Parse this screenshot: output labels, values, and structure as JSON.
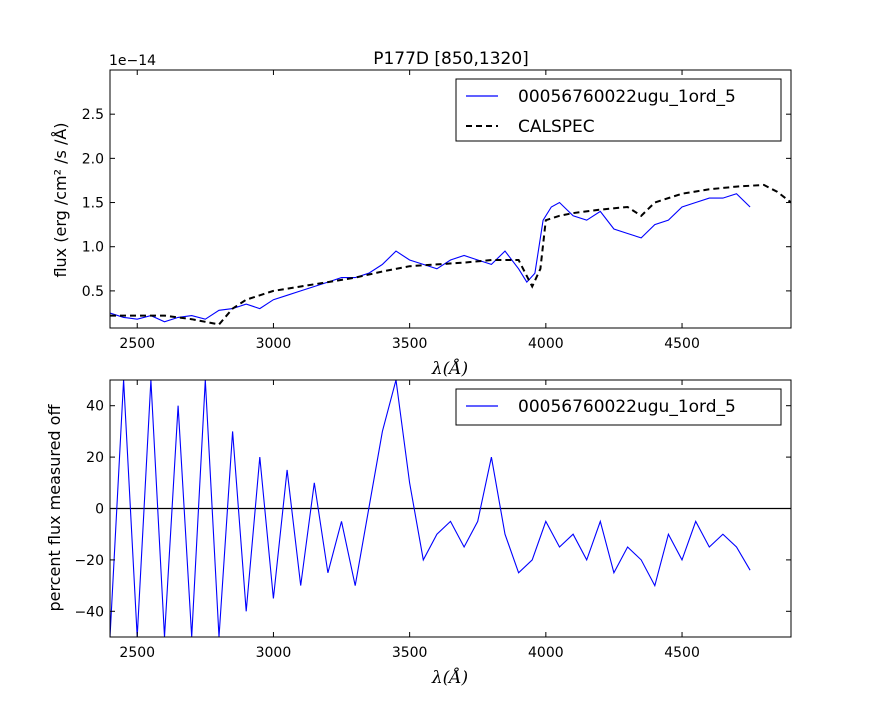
{
  "chart_data": [
    {
      "type": "line",
      "title": "P177D [850,1320]",
      "xlabel": "λ(Å)",
      "ylabel": "flux (erg /cm² /s /Å)",
      "offset_text": "1e−14",
      "xlim": [
        2400,
        4900
      ],
      "ylim": [
        0.08,
        3.0
      ],
      "x_ticks": [
        "2500",
        "3000",
        "3500",
        "4000",
        "4500"
      ],
      "y_ticks": [
        "0.5",
        "1.0",
        "1.5",
        "2.0",
        "2.5"
      ],
      "legend_position": "upper-right",
      "grid": false,
      "series": [
        {
          "name": "00056760022ugu_1ord_5",
          "color": "#0000ff",
          "style": "solid",
          "x": [
            2400,
            2450,
            2500,
            2550,
            2600,
            2650,
            2700,
            2750,
            2800,
            2850,
            2900,
            2950,
            3000,
            3050,
            3100,
            3150,
            3200,
            3250,
            3300,
            3350,
            3400,
            3450,
            3500,
            3550,
            3600,
            3650,
            3700,
            3750,
            3800,
            3850,
            3900,
            3930,
            3960,
            3990,
            4020,
            4050,
            4100,
            4150,
            4200,
            4250,
            4300,
            4350,
            4400,
            4450,
            4500,
            4550,
            4600,
            4650,
            4700,
            4750
          ],
          "y": [
            0.25,
            0.2,
            0.18,
            0.22,
            0.15,
            0.2,
            0.22,
            0.18,
            0.28,
            0.3,
            0.35,
            0.3,
            0.4,
            0.45,
            0.5,
            0.55,
            0.6,
            0.65,
            0.65,
            0.7,
            0.8,
            0.95,
            0.85,
            0.8,
            0.75,
            0.85,
            0.9,
            0.85,
            0.8,
            0.95,
            0.75,
            0.6,
            0.7,
            1.3,
            1.45,
            1.5,
            1.35,
            1.3,
            1.4,
            1.2,
            1.15,
            1.1,
            1.25,
            1.3,
            1.45,
            1.5,
            1.55,
            1.55,
            1.6,
            1.45
          ]
        },
        {
          "name": "CALSPEC",
          "color": "#000000",
          "style": "dashed",
          "x": [
            2400,
            2500,
            2600,
            2650,
            2700,
            2750,
            2800,
            2850,
            2900,
            3000,
            3100,
            3200,
            3300,
            3400,
            3500,
            3600,
            3700,
            3800,
            3850,
            3900,
            3950,
            3980,
            4000,
            4050,
            4100,
            4200,
            4300,
            4350,
            4400,
            4500,
            4600,
            4700,
            4800,
            4850,
            4900
          ],
          "y": [
            0.22,
            0.22,
            0.22,
            0.2,
            0.18,
            0.15,
            0.12,
            0.3,
            0.4,
            0.5,
            0.55,
            0.6,
            0.65,
            0.72,
            0.78,
            0.8,
            0.82,
            0.85,
            0.85,
            0.85,
            0.55,
            0.75,
            1.3,
            1.35,
            1.38,
            1.42,
            1.45,
            1.35,
            1.5,
            1.6,
            1.65,
            1.68,
            1.7,
            1.62,
            1.5
          ]
        }
      ]
    },
    {
      "type": "line",
      "title": "",
      "xlabel": "λ(Å)",
      "ylabel": "percent flux measured off",
      "xlim": [
        2400,
        4900
      ],
      "ylim": [
        -50,
        50
      ],
      "x_ticks": [
        "2500",
        "3000",
        "3500",
        "4000",
        "4500"
      ],
      "y_ticks": [
        "−40",
        "−20",
        "0",
        "20",
        "40"
      ],
      "hline_y": 0,
      "legend_position": "upper-right",
      "grid": false,
      "series": [
        {
          "name": "00056760022ugu_1ord_5",
          "color": "#0000ff",
          "style": "solid",
          "x": [
            2400,
            2450,
            2500,
            2550,
            2600,
            2650,
            2700,
            2750,
            2800,
            2850,
            2900,
            2950,
            3000,
            3050,
            3100,
            3150,
            3200,
            3250,
            3300,
            3350,
            3400,
            3450,
            3500,
            3550,
            3600,
            3650,
            3700,
            3750,
            3800,
            3850,
            3900,
            3950,
            4000,
            4050,
            4100,
            4150,
            4200,
            4250,
            4300,
            4350,
            4400,
            4450,
            4500,
            4550,
            4600,
            4650,
            4700,
            4750
          ],
          "y": [
            -50,
            50,
            -50,
            50,
            -50,
            40,
            -50,
            50,
            -50,
            30,
            -40,
            20,
            -35,
            15,
            -30,
            10,
            -25,
            -5,
            -30,
            0,
            30,
            50,
            10,
            -20,
            -10,
            -5,
            -15,
            -5,
            20,
            -10,
            -25,
            -20,
            -5,
            -15,
            -10,
            -20,
            -5,
            -25,
            -15,
            -20,
            -30,
            -10,
            -20,
            -5,
            -15,
            -10,
            -15,
            -24
          ]
        }
      ]
    }
  ]
}
